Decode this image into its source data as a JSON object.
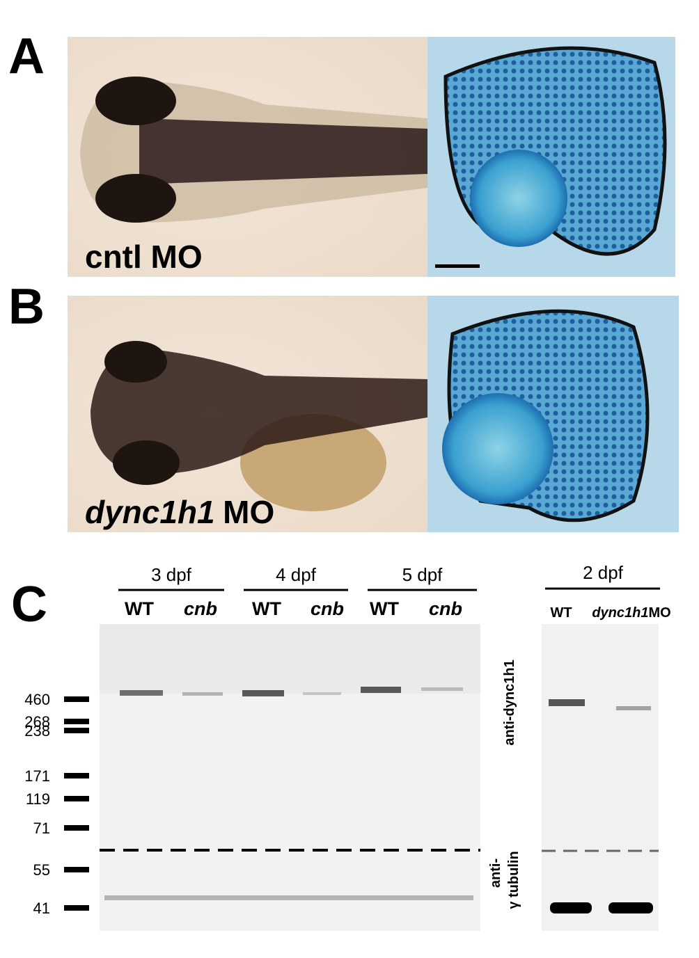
{
  "panels": [
    {
      "label": "A",
      "caption": {
        "plain": "cntl MO"
      }
    },
    {
      "label": "B",
      "caption": {
        "italic": "dync1h1",
        "plain": "MO"
      }
    }
  ],
  "blot": {
    "label": "C",
    "groups": [
      {
        "label": "3 dpf",
        "lanes": [
          {
            "plain": "WT"
          },
          {
            "italic": "cnb"
          }
        ]
      },
      {
        "label": "4 dpf",
        "lanes": [
          {
            "plain": "WT"
          },
          {
            "italic": "cnb"
          }
        ]
      },
      {
        "label": "5 dpf",
        "lanes": [
          {
            "plain": "WT"
          },
          {
            "italic": "cnb"
          }
        ]
      }
    ],
    "side_group": {
      "label": "2 dpf",
      "lanes": [
        {
          "plain": "WT"
        },
        {
          "italic": "dync1h1",
          "plain": "MO"
        }
      ]
    },
    "markers": [
      460,
      268,
      238,
      171,
      119,
      71,
      55,
      41
    ],
    "antibody_top": "anti-dync1h1",
    "antibody_bottom": [
      "anti-",
      "γ tubulin"
    ]
  }
}
